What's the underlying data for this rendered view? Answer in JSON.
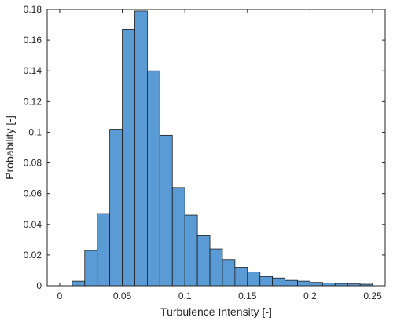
{
  "chart_data": {
    "type": "bar",
    "subtype": "histogram",
    "title": "",
    "xlabel": "Turbulence Intensity [-]",
    "ylabel": "Probability [-]",
    "xlim": [
      -0.01,
      0.26
    ],
    "ylim": [
      0,
      0.18
    ],
    "xticks": [
      0,
      0.05,
      0.1,
      0.15,
      0.2,
      0.25
    ],
    "xtick_labels": [
      "0",
      "0.05",
      "0.1",
      "0.15",
      "0.2",
      "0.25"
    ],
    "yticks": [
      0,
      0.02,
      0.04,
      0.06,
      0.08,
      0.1,
      0.12,
      0.14,
      0.16,
      0.18
    ],
    "ytick_labels": [
      "0",
      "0.02",
      "0.04",
      "0.06",
      "0.08",
      "0.1",
      "0.12",
      "0.14",
      "0.16",
      "0.18"
    ],
    "bin_width": 0.01,
    "bin_edges": [
      0.01,
      0.02,
      0.03,
      0.04,
      0.05,
      0.06,
      0.07,
      0.08,
      0.09,
      0.1,
      0.11,
      0.12,
      0.13,
      0.14,
      0.15,
      0.16,
      0.17,
      0.18,
      0.19,
      0.2,
      0.21,
      0.22,
      0.23,
      0.24,
      0.25
    ],
    "values": [
      0.003,
      0.023,
      0.047,
      0.102,
      0.167,
      0.179,
      0.14,
      0.098,
      0.064,
      0.046,
      0.033,
      0.024,
      0.017,
      0.012,
      0.009,
      0.006,
      0.005,
      0.0035,
      0.003,
      0.0022,
      0.0018,
      0.0015,
      0.0012,
      0.001
    ],
    "bar_color": "#5b9bd5",
    "edge_color": "#1a1a1a",
    "grid": false
  }
}
